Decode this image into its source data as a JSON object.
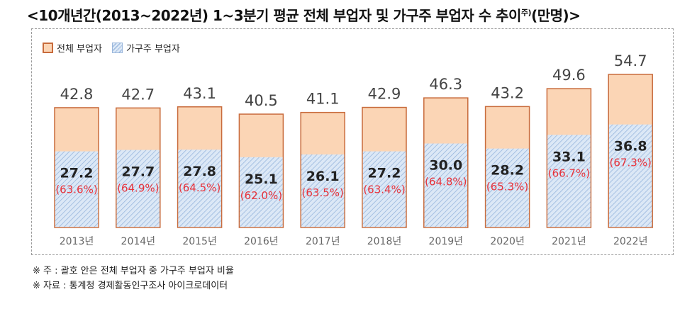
{
  "title": "<10개년간(2013~2022년) 1~3분기 평균 전체 부업자 및 가구주 부업자 수 추이",
  "title_superscript": "주)",
  "title_unit": "(만명)>",
  "legend": {
    "total_label": "전체 부업자",
    "head_label": "가구주 부업자"
  },
  "notes": [
    "※ 주 : 괄호 안은 전체 부업자 중 가구주 부업자 비율",
    "※ 자료 : 통계청 경제활동인구조사 아이크로데이터"
  ],
  "colors": {
    "total_fill": "#fbd5b5",
    "total_stroke": "#c86b3c",
    "head_fill": "#dce8f6",
    "head_hatch": "#8fb0da",
    "total_label": "#444444",
    "head_label": "#222222",
    "ratio_label": "#e8323a",
    "year_label": "#666666"
  },
  "chart_data": {
    "type": "bar",
    "categories": [
      "2013년",
      "2014년",
      "2015년",
      "2016년",
      "2017년",
      "2018년",
      "2019년",
      "2020년",
      "2021년",
      "2022년"
    ],
    "series": [
      {
        "name": "전체 부업자",
        "values": [
          42.8,
          42.7,
          43.1,
          40.5,
          41.1,
          42.9,
          46.3,
          43.2,
          49.6,
          54.7
        ],
        "labels": [
          "42.8",
          "42.7",
          "43.1",
          "40.5",
          "41.1",
          "42.9",
          "46.3",
          "43.2",
          "49.6",
          "54.7"
        ]
      },
      {
        "name": "가구주 부업자",
        "values": [
          27.2,
          27.7,
          27.8,
          25.1,
          26.1,
          27.2,
          30.0,
          28.2,
          33.1,
          36.8
        ],
        "labels": [
          "27.2",
          "27.7",
          "27.8",
          "25.1",
          "26.1",
          "27.2",
          "30.0",
          "28.2",
          "33.1",
          "36.8"
        ]
      }
    ],
    "ratio_labels": [
      "(63.6%)",
      "(64.9%)",
      "(64.5%)",
      "(62.0%)",
      "(63.5%)",
      "(63.4%)",
      "(64.8%)",
      "(65.3%)",
      "(66.7%)",
      "(67.3%)"
    ],
    "ylim": [
      0,
      60
    ],
    "grid": false,
    "legend_position": "top-left"
  }
}
